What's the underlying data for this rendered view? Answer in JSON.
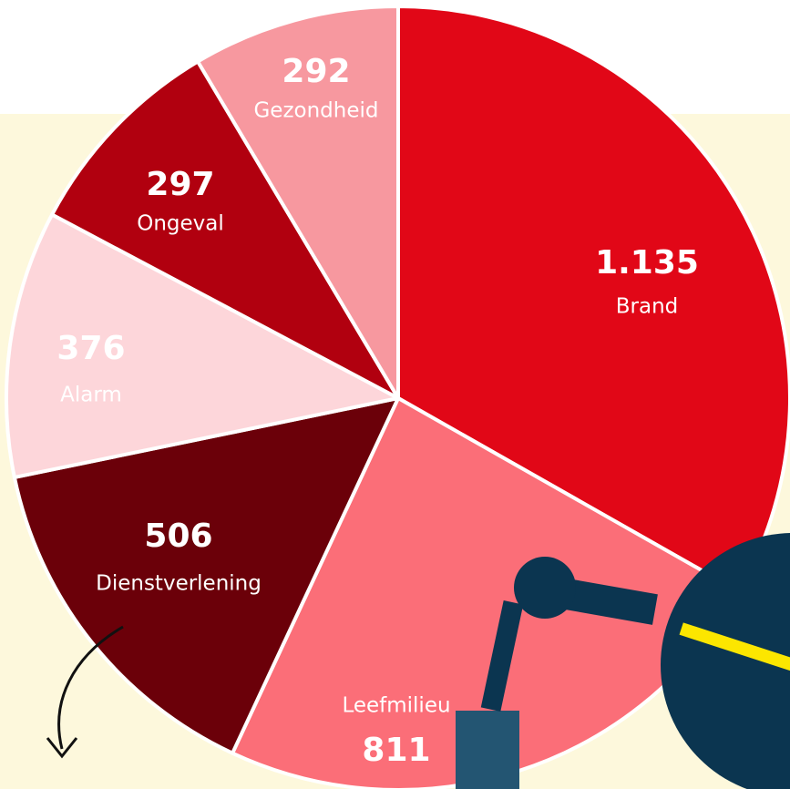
{
  "chart_data": {
    "type": "pie",
    "categories": [
      "Brand",
      "Leefmilieu",
      "Dienstverlening",
      "Alarm",
      "Ongeval",
      "Gezondheid"
    ],
    "values": [
      1135,
      811,
      506,
      376,
      297,
      292
    ],
    "value_labels": [
      "1.135",
      "811",
      "506",
      "376",
      "297",
      "292"
    ],
    "colors": [
      "#e10717",
      "#fb6e78",
      "#6b0009",
      "#fdd6da",
      "#b1000f",
      "#f7989f"
    ]
  }
}
